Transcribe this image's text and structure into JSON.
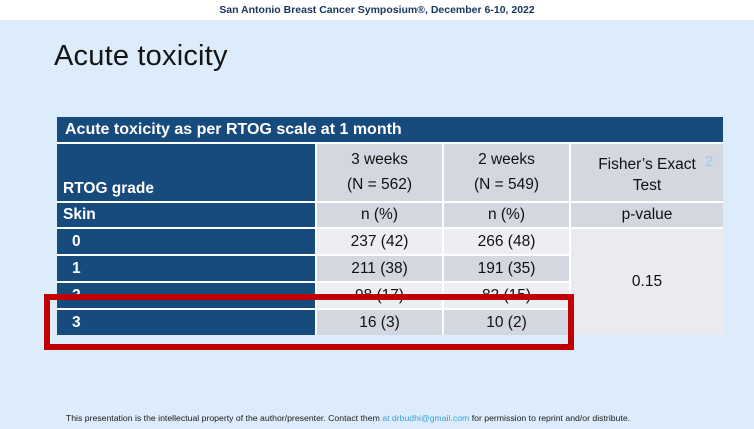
{
  "top_banner": {
    "text": "San Antonio Breast Cancer Symposium®, December 6-10, 2022"
  },
  "slide": {
    "title": "Acute toxicity",
    "page_number": "2",
    "table": {
      "caption": "Acute toxicity as per RTOG scale at 1 month",
      "header": {
        "group_label": "RTOG grade",
        "col2_line1": "3 weeks",
        "col2_line2": "(N = 562)",
        "col3_line1": "2 weeks",
        "col3_line2": "(N = 549)",
        "col4_line1": "Fisher’s Exact",
        "col4_line2": "Test"
      },
      "subheader": {
        "label": "Skin",
        "col2": "n (%)",
        "col3": "n (%)",
        "col4": "p-value"
      },
      "rows": [
        {
          "grade": "0",
          "three_weeks": "237 (42)",
          "two_weeks": "266 (48)"
        },
        {
          "grade": "1",
          "three_weeks": "211 (38)",
          "two_weeks": "191 (35)"
        },
        {
          "grade": "2",
          "three_weeks": "98 (17)",
          "two_weeks": "82 (15)"
        },
        {
          "grade": "3",
          "three_weeks": "16 (3)",
          "two_weeks": "10 (2)"
        }
      ],
      "p_value": "0.15"
    }
  },
  "footer": {
    "text_before": "This presentation is the intellectual property of the author/presenter. Contact them ",
    "link_text": "at  drbudhi@gmail.com",
    "text_after": " for permission to reprint and/or distribute."
  },
  "colors": {
    "navy": "#174A7D",
    "highlight_red": "#C00000",
    "link_blue": "#3AA0D9",
    "slide_background": "#DCECFA",
    "cell_gray": "#D3D7E0",
    "cell_light": "#ECEEF4"
  }
}
